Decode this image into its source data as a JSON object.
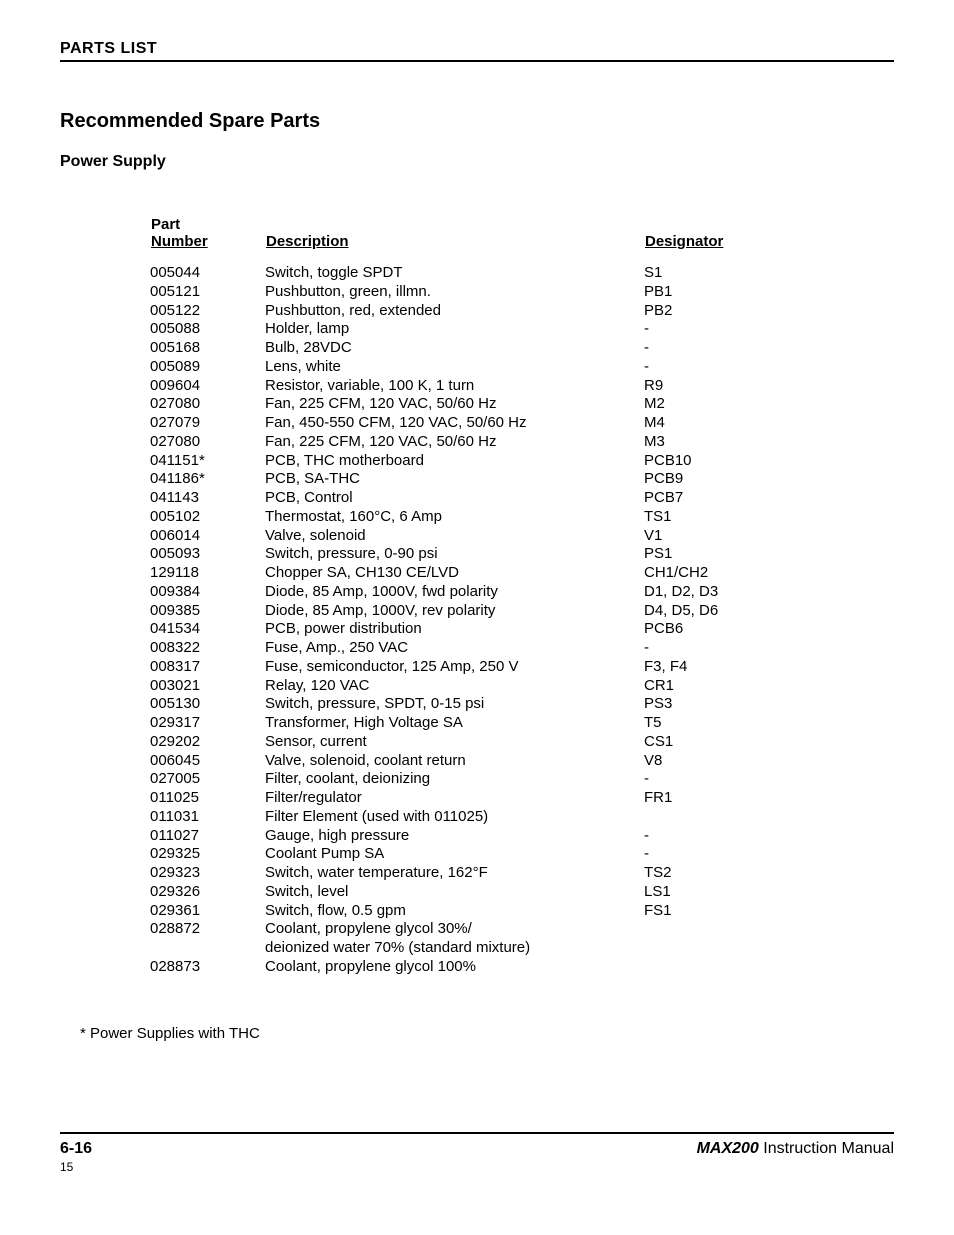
{
  "header": {
    "title": "PARTS LIST"
  },
  "headings": {
    "main": "Recommended Spare Parts",
    "sub": "Power Supply"
  },
  "table": {
    "columns": {
      "part_line1": "Part",
      "part_line2": "Number",
      "description": "Description",
      "designator": "Designator"
    },
    "rows": [
      {
        "pn": "005044",
        "desc": "Switch, toggle SPDT",
        "desig": "S1"
      },
      {
        "pn": "005121",
        "desc": "Pushbutton, green, illmn.",
        "desig": "PB1"
      },
      {
        "pn": "005122",
        "desc": "Pushbutton, red, extended",
        "desig": "PB2"
      },
      {
        "pn": "005088",
        "desc": "Holder, lamp",
        "desig": "-"
      },
      {
        "pn": "005168",
        "desc": "Bulb, 28VDC",
        "desig": "-"
      },
      {
        "pn": "005089",
        "desc": "Lens, white",
        "desig": "-"
      },
      {
        "pn": "009604",
        "desc": "Resistor, variable, 100 K, 1 turn",
        "desig": "R9"
      },
      {
        "pn": "027080",
        "desc": "Fan, 225 CFM, 120 VAC, 50/60 Hz",
        "desig": "M2"
      },
      {
        "pn": "027079",
        "desc": "Fan, 450-550 CFM, 120 VAC, 50/60 Hz",
        "desig": "M4"
      },
      {
        "pn": "027080",
        "desc": "Fan, 225 CFM, 120 VAC, 50/60 Hz",
        "desig": "M3"
      },
      {
        "pn": "041151*",
        "desc": "PCB, THC motherboard",
        "desig": "PCB10"
      },
      {
        "pn": "041186*",
        "desc": "PCB, SA-THC",
        "desig": "PCB9"
      },
      {
        "pn": "041143",
        "desc": "PCB, Control",
        "desig": "PCB7"
      },
      {
        "pn": "005102",
        "desc": "Thermostat, 160°C, 6 Amp",
        "desig": "TS1"
      },
      {
        "pn": "006014",
        "desc": "Valve, solenoid",
        "desig": "V1"
      },
      {
        "pn": "005093",
        "desc": "Switch, pressure, 0-90 psi",
        "desig": "PS1"
      },
      {
        "pn": "129118",
        "desc": "Chopper SA, CH130 CE/LVD",
        "desig": "CH1/CH2"
      },
      {
        "pn": "009384",
        "desc": "Diode, 85 Amp, 1000V, fwd polarity",
        "desig": "D1, D2, D3"
      },
      {
        "pn": "009385",
        "desc": "Diode, 85 Amp, 1000V, rev polarity",
        "desig": "D4, D5, D6"
      },
      {
        "pn": "041534",
        "desc": "PCB, power distribution",
        "desig": "PCB6"
      },
      {
        "pn": "008322",
        "desc": "Fuse, Amp., 250 VAC",
        "desig": "-"
      },
      {
        "pn": "008317",
        "desc": "Fuse, semiconductor, 125 Amp, 250 V",
        "desig": "F3, F4"
      },
      {
        "pn": "003021",
        "desc": "Relay, 120 VAC",
        "desig": "CR1"
      },
      {
        "pn": "005130",
        "desc": "Switch, pressure, SPDT, 0-15 psi",
        "desig": "PS3"
      },
      {
        "pn": "029317",
        "desc": "Transformer, High Voltage SA",
        "desig": "T5"
      },
      {
        "pn": "029202",
        "desc": "Sensor, current",
        "desig": "CS1"
      },
      {
        "pn": "006045",
        "desc": "Valve, solenoid, coolant return",
        "desig": "V8"
      },
      {
        "pn": "027005",
        "desc": "Filter, coolant, deionizing",
        "desig": "-"
      },
      {
        "pn": "011025",
        "desc": "Filter/regulator",
        "desig": "FR1"
      },
      {
        "pn": "011031",
        "desc": "Filter Element (used with 011025)",
        "desig": ""
      },
      {
        "pn": "011027",
        "desc": "Gauge, high pressure",
        "desig": "-"
      },
      {
        "pn": "029325",
        "desc": "Coolant Pump SA",
        "desig": "-"
      },
      {
        "pn": "029323",
        "desc": "Switch, water temperature, 162°F",
        "desig": "TS2"
      },
      {
        "pn": "029326",
        "desc": "Switch, level",
        "desig": "LS1"
      },
      {
        "pn": "029361",
        "desc": "Switch, flow, 0.5 gpm",
        "desig": "FS1"
      },
      {
        "pn": "028872",
        "desc": "Coolant, propylene glycol 30%/",
        "desig": ""
      },
      {
        "pn": "",
        "desc": "deionized water 70% (standard mixture)",
        "desig": ""
      },
      {
        "pn": "028873",
        "desc": "Coolant, propylene glycol 100%",
        "desig": ""
      }
    ]
  },
  "footnote": "* Power Supplies with THC",
  "footer": {
    "page": "6-16",
    "manual_bold": "MAX200",
    "manual_rest": "  Instruction Manual",
    "small": "15"
  }
}
